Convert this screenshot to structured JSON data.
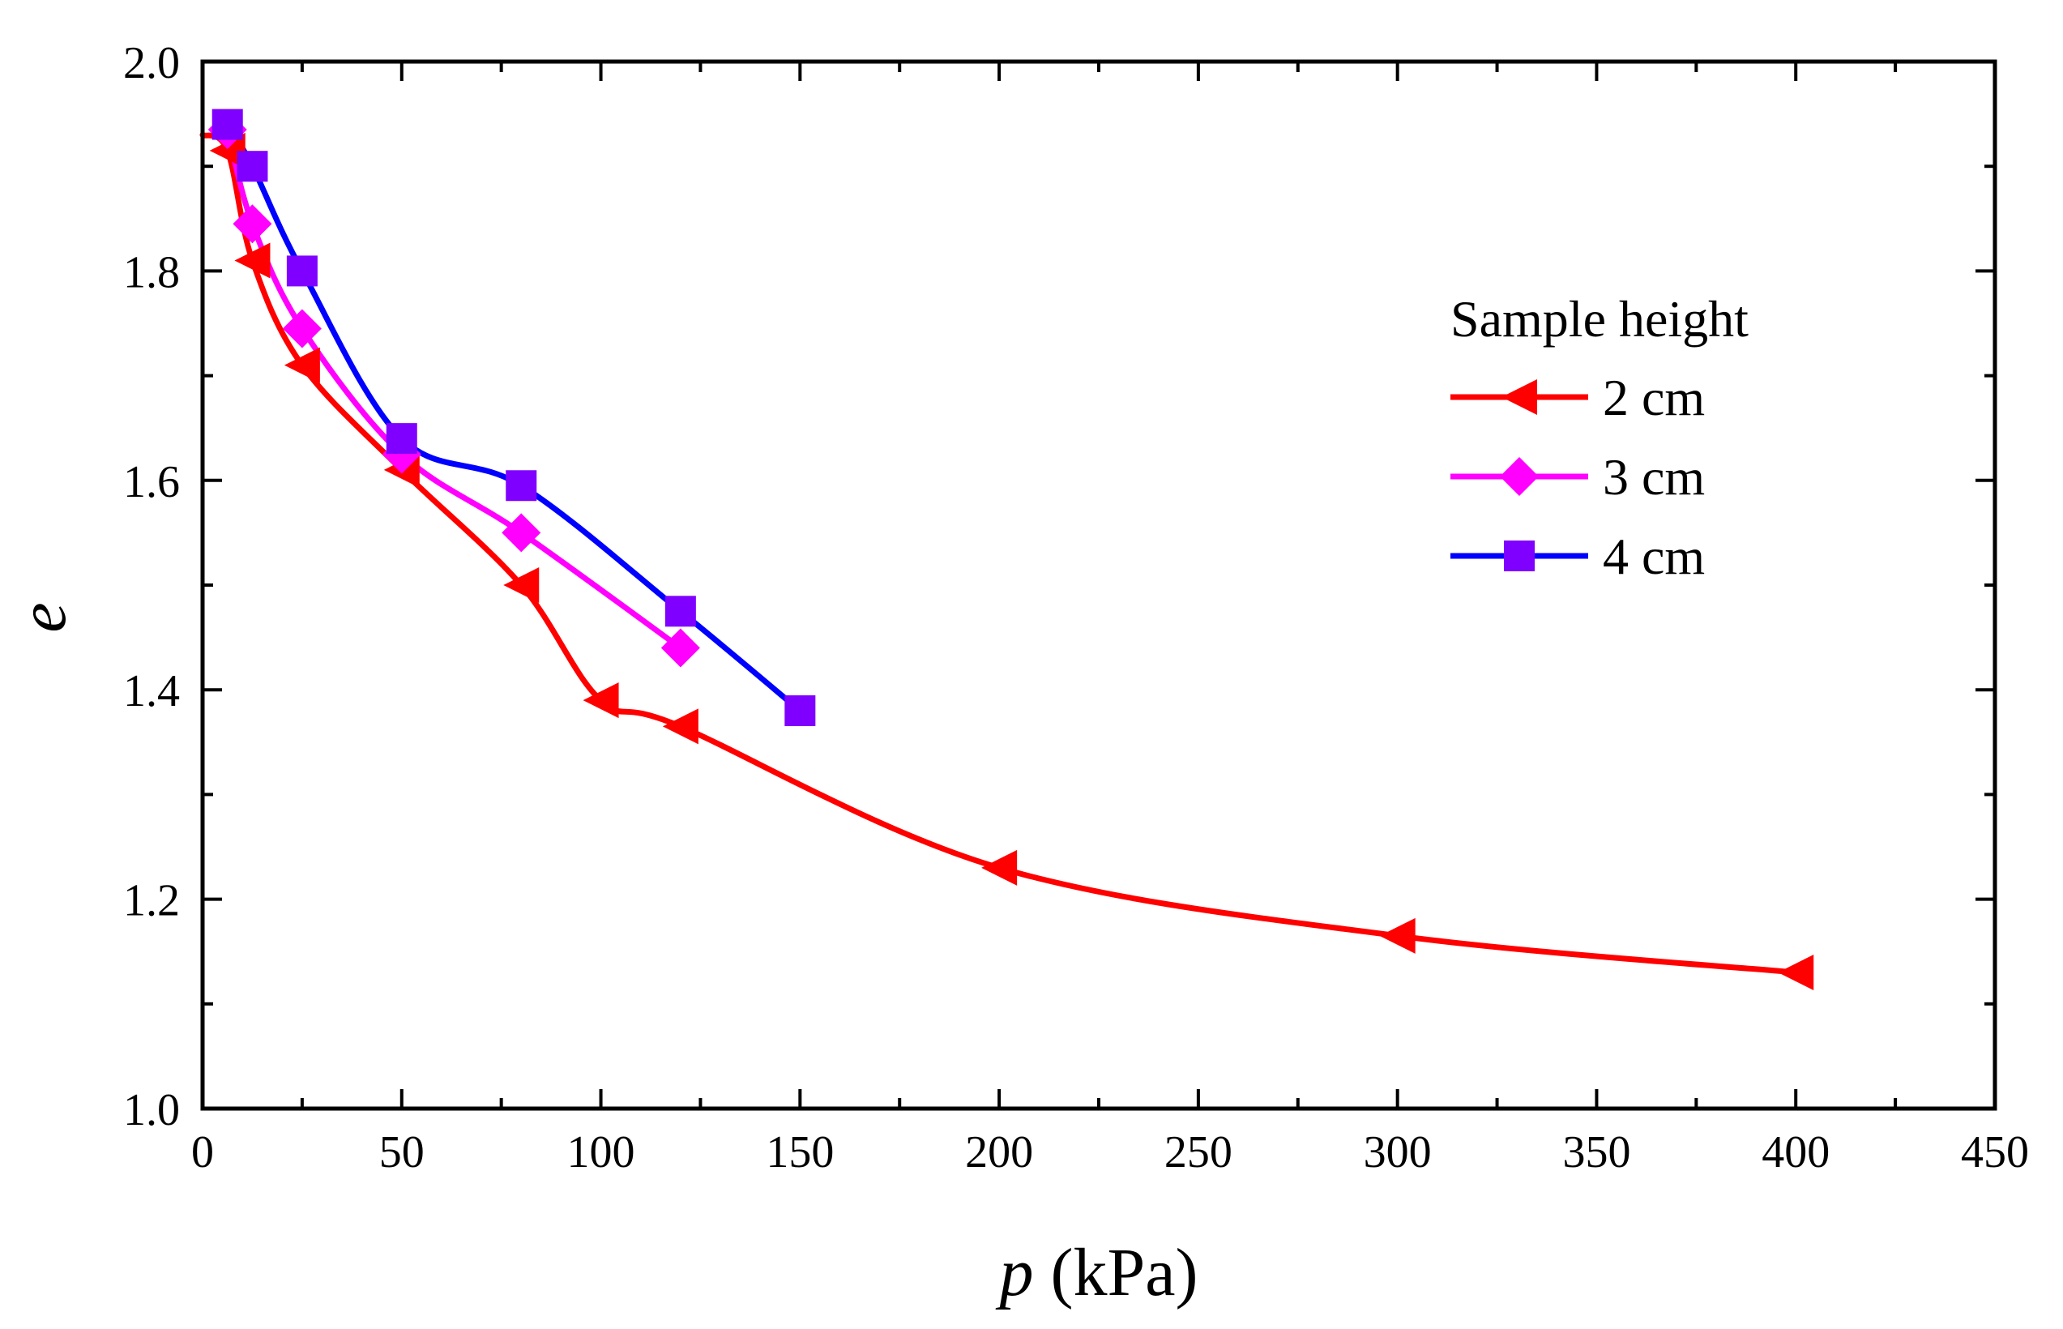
{
  "chart_data": {
    "type": "line",
    "title": "",
    "xlabel_var": "p",
    "xlabel_unit": " (kPa)",
    "ylabel": "e",
    "xlim": [
      0,
      450
    ],
    "ylim": [
      1.0,
      2.0
    ],
    "x_ticks": [
      "0",
      "50",
      "100",
      "150",
      "200",
      "250",
      "300",
      "350",
      "400",
      "450"
    ],
    "y_ticks": [
      "1.0",
      "1.2",
      "1.4",
      "1.6",
      "1.8",
      "2.0"
    ],
    "grid": false,
    "legend_title": "Sample height",
    "legend_position": "top-right",
    "series": [
      {
        "name": "2 cm",
        "color": "#ff0000",
        "marker": "left-triangle",
        "x": [
          0,
          6.25,
          12.5,
          25,
          50,
          80,
          100,
          120,
          200,
          300,
          400
        ],
        "y": [
          1.93,
          1.915,
          1.81,
          1.71,
          1.61,
          1.5,
          1.39,
          1.365,
          1.23,
          1.165,
          1.13
        ]
      },
      {
        "name": "3 cm",
        "color": "#ff00ff",
        "marker": "diamond",
        "x": [
          6.25,
          12.5,
          25,
          50,
          80,
          120
        ],
        "y": [
          1.935,
          1.845,
          1.745,
          1.625,
          1.55,
          1.44
        ]
      },
      {
        "name": "4 cm",
        "color": "#0000ff",
        "marker_color": "#7f00ff",
        "marker": "square",
        "x": [
          6.25,
          12.5,
          25,
          50,
          80,
          120,
          150
        ],
        "y": [
          1.94,
          1.9,
          1.8,
          1.64,
          1.595,
          1.475,
          1.38
        ]
      }
    ]
  }
}
